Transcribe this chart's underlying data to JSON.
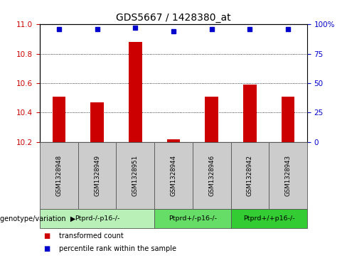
{
  "title": "GDS5667 / 1428380_at",
  "samples": [
    "GSM1328948",
    "GSM1328949",
    "GSM1328951",
    "GSM1328944",
    "GSM1328946",
    "GSM1328942",
    "GSM1328943"
  ],
  "bar_values": [
    10.51,
    10.47,
    10.88,
    10.22,
    10.51,
    10.59,
    10.51
  ],
  "percentile_values": [
    96,
    96,
    97,
    94,
    96,
    96,
    96
  ],
  "bar_color": "#cc0000",
  "dot_color": "#0000cc",
  "ylim_left": [
    10.2,
    11.0
  ],
  "ylim_right": [
    0,
    100
  ],
  "yticks_left": [
    10.2,
    10.4,
    10.6,
    10.8,
    11.0
  ],
  "yticks_right": [
    0,
    25,
    50,
    75,
    100
  ],
  "ylabel_left_color": "#cc0000",
  "ylabel_right_color": "#0000cc",
  "groups": [
    {
      "label": "Ptprd-/-p16-/-",
      "start": 0,
      "end": 3,
      "color": "#b8f0b8"
    },
    {
      "label": "Ptprd+/-p16-/-",
      "start": 3,
      "end": 5,
      "color": "#66dd66"
    },
    {
      "label": "Ptprd+/+p16-/-",
      "start": 5,
      "end": 7,
      "color": "#33cc33"
    }
  ],
  "group_row_label": "genotype/variation",
  "legend_items": [
    {
      "label": "transformed count",
      "color": "#cc0000"
    },
    {
      "label": "percentile rank within the sample",
      "color": "#0000cc"
    }
  ],
  "bar_width": 0.35,
  "sample_box_color": "#cccccc",
  "sample_box_edge": "#555555",
  "dotted_line_color": "#000000",
  "background_color": "#ffffff"
}
